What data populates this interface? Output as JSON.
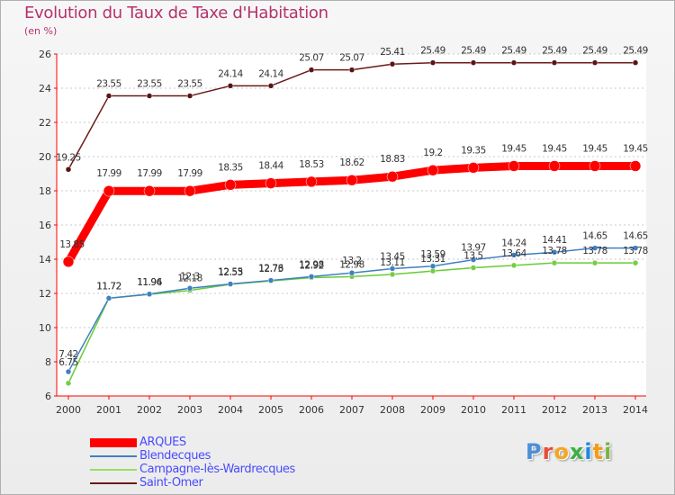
{
  "page": {
    "title": "Evolution du Taux de Taxe d'Habitation",
    "subtitle": "(en %)"
  },
  "chart_data": {
    "type": "line",
    "title": "Evolution du Taux de Taxe d'Habitation",
    "ylabel": "(en %)",
    "xlabel": "",
    "categories": [
      "2000",
      "2001",
      "2002",
      "2003",
      "2004",
      "2005",
      "2006",
      "2007",
      "2008",
      "2009",
      "2010",
      "2011",
      "2012",
      "2013",
      "2014"
    ],
    "yticks": [
      6,
      8,
      10,
      12,
      14,
      16,
      18,
      20,
      22,
      24,
      26
    ],
    "ylim": [
      6,
      26
    ],
    "grid": "horizontal-dashed",
    "series": [
      {
        "name": "Saint-Omer",
        "color": "#6b1a1a",
        "values": [
          19.25,
          23.55,
          23.55,
          23.55,
          24.14,
          24.14,
          25.07,
          25.07,
          25.41,
          25.49,
          25.49,
          25.49,
          25.49,
          25.49,
          25.49
        ],
        "labels": [
          "19.25",
          "23.55",
          "23.55",
          "23.55",
          "24.14",
          "24.14",
          "25.07",
          "25.07",
          "25.41",
          "25.49",
          "25.49",
          "25.49",
          "25.49",
          "25.49",
          "25.49"
        ]
      },
      {
        "name": "ARQUES",
        "color": "#ff0000",
        "values": [
          13.85,
          17.99,
          17.99,
          17.99,
          18.35,
          18.44,
          18.53,
          18.62,
          18.83,
          19.2,
          19.35,
          19.45,
          19.45,
          19.45,
          19.45
        ],
        "labels": [
          "13.85",
          "17.99",
          "17.99",
          "17.99",
          "18.35",
          "18.44",
          "18.53",
          "18.62",
          "18.83",
          "19.2",
          "19.35",
          "19.45",
          "19.45",
          "19.45",
          "19.45"
        ]
      },
      {
        "name": "Blendecques",
        "color": "#3f7fc4",
        "values": [
          7.42,
          11.72,
          11.96,
          12.3,
          12.55,
          12.76,
          12.98,
          13.2,
          13.45,
          13.59,
          13.97,
          14.24,
          14.41,
          14.65,
          14.65
        ],
        "labels": [
          "7.42",
          "11.72",
          "11.96",
          "12.3",
          "12.55",
          "12.76",
          "12.98",
          "13.2",
          "13.45",
          "13.59",
          "13.97",
          "14.24",
          "14.41",
          "14.65",
          "14.65"
        ]
      },
      {
        "name": "Campagne-lès-Wardrecques",
        "color": "#66cc33",
        "values": [
          6.75,
          11.72,
          11.94,
          12.18,
          12.53,
          12.73,
          12.92,
          12.98,
          13.11,
          13.31,
          13.5,
          13.64,
          13.78,
          13.78,
          13.78
        ],
        "labels": [
          "6.75",
          "11.72",
          "11.94",
          "12.18",
          "12.53",
          "12.73",
          "12.92",
          "12.98",
          "13.11",
          "13.31",
          "13.5",
          "13.64",
          "13.78",
          "13.78",
          "13.78"
        ]
      }
    ],
    "legend": [
      {
        "name": "ARQUES",
        "color": "#ff0000"
      },
      {
        "name": "Blendecques",
        "color": "#3f7fc4"
      },
      {
        "name": "Campagne-lès-Wardrecques",
        "color": "#99dd66"
      },
      {
        "name": "Saint-Omer",
        "color": "#6b1a1a"
      }
    ],
    "legend_position": "bottom-left"
  },
  "logo": {
    "letters": [
      "P",
      "r",
      "o",
      "x",
      "i",
      "t",
      "i"
    ],
    "colors": [
      "#4a8fd8",
      "#e94b3c",
      "#f5a623",
      "#3cb043",
      "#1e88e5",
      "#f39c12",
      "#7cb342"
    ]
  }
}
